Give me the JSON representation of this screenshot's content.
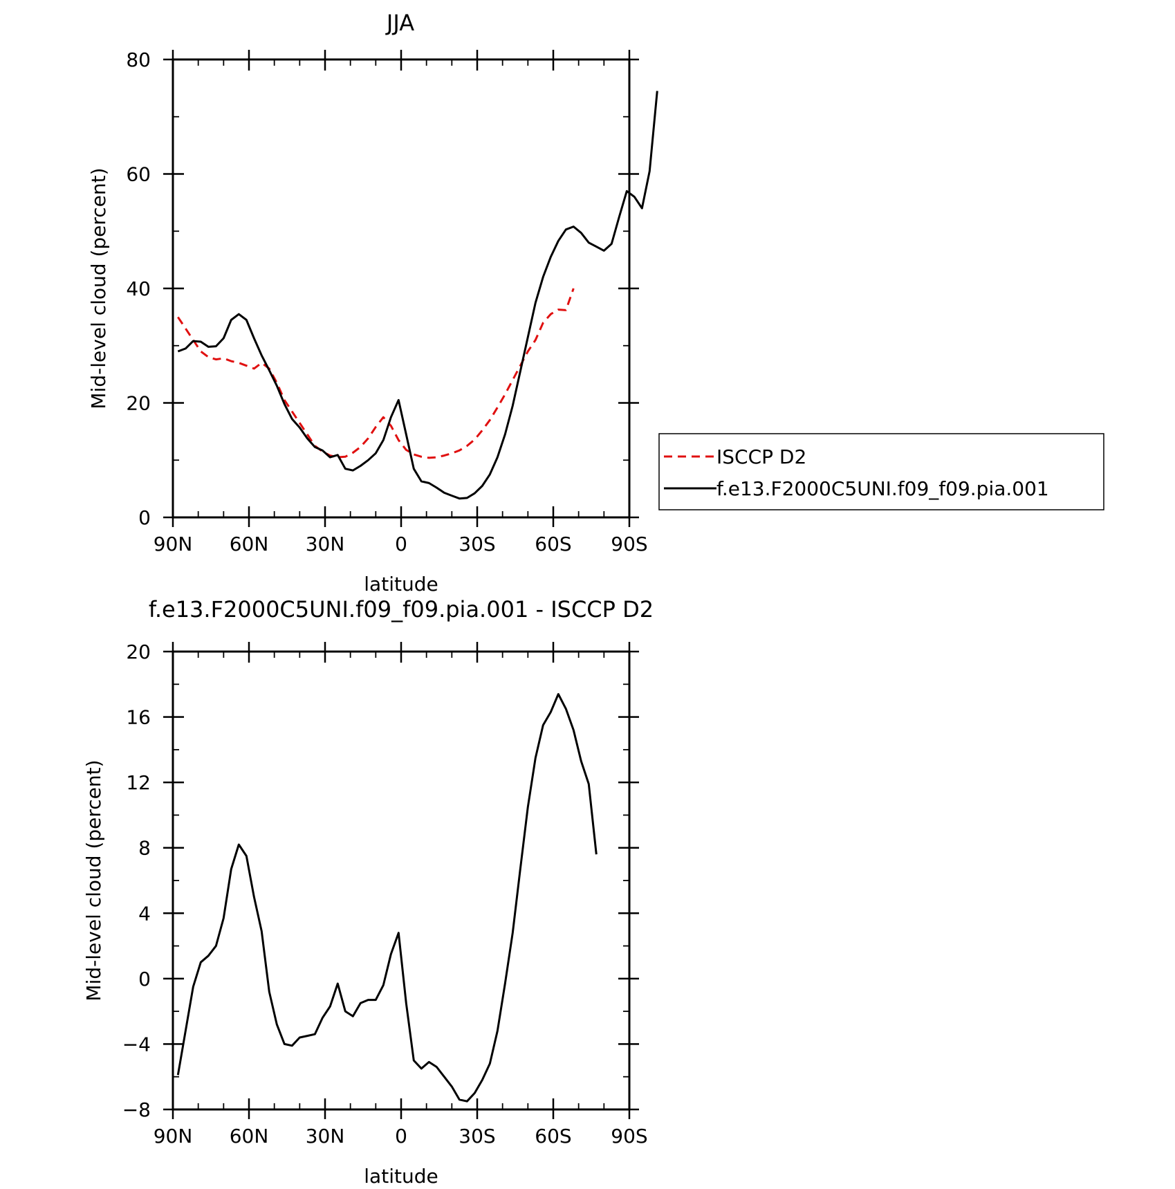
{
  "chart_data": [
    {
      "type": "line",
      "title": "JJA",
      "xlabel": "latitude",
      "ylabel": "Mid-level cloud (percent)",
      "xlim": [
        -90,
        90
      ],
      "ylim": [
        0,
        80
      ],
      "xticks": [
        {
          "value": -90,
          "label": "90N"
        },
        {
          "value": -60,
          "label": "60N"
        },
        {
          "value": -30,
          "label": "30N"
        },
        {
          "value": 0,
          "label": "0"
        },
        {
          "value": 30,
          "label": "30S"
        },
        {
          "value": 60,
          "label": "60S"
        },
        {
          "value": 90,
          "label": "90S"
        }
      ],
      "yticks": [
        {
          "value": 0,
          "label": "0"
        },
        {
          "value": 20,
          "label": "20"
        },
        {
          "value": 40,
          "label": "40"
        },
        {
          "value": 60,
          "label": "60"
        },
        {
          "value": 80,
          "label": "80"
        }
      ],
      "legend_position": "right",
      "series": [
        {
          "name": "ISCCP D2",
          "color": "#e01010",
          "dash": "dashed",
          "points": [
            [
              -88,
              35
            ],
            [
              -85,
              33
            ],
            [
              -82,
              31
            ],
            [
              -79,
              29
            ],
            [
              -76,
              28
            ],
            [
              -73,
              27.6
            ],
            [
              -70,
              27.8
            ],
            [
              -67,
              27.3
            ],
            [
              -64,
              27
            ],
            [
              -61,
              26.5
            ],
            [
              -58,
              26
            ],
            [
              -55,
              27
            ],
            [
              -52,
              26
            ],
            [
              -49,
              23.5
            ],
            [
              -46,
              20.5
            ],
            [
              -43,
              18.5
            ],
            [
              -40,
              16.5
            ],
            [
              -37,
              14.5
            ],
            [
              -34,
              12.5
            ],
            [
              -31,
              11.5
            ],
            [
              -28,
              10.8
            ],
            [
              -25,
              10.5
            ],
            [
              -22,
              10.6
            ],
            [
              -19,
              11.3
            ],
            [
              -16,
              12.3
            ],
            [
              -13,
              13.8
            ],
            [
              -10,
              15.8
            ],
            [
              -7,
              17.5
            ],
            [
              -4,
              16
            ],
            [
              -1,
              13.5
            ],
            [
              2,
              11.8
            ],
            [
              5,
              11
            ],
            [
              8,
              10.6
            ],
            [
              11,
              10.4
            ],
            [
              14,
              10.5
            ],
            [
              17,
              10.8
            ],
            [
              20,
              11.2
            ],
            [
              23,
              11.7
            ],
            [
              26,
              12.5
            ],
            [
              29,
              13.6
            ],
            [
              32,
              15.2
            ],
            [
              35,
              17
            ],
            [
              38,
              19.2
            ],
            [
              41,
              21.5
            ],
            [
              44,
              24
            ],
            [
              47,
              26.5
            ],
            [
              50,
              29
            ],
            [
              53,
              31
            ],
            [
              56,
              34
            ],
            [
              59,
              35.5
            ],
            [
              62,
              36.3
            ],
            [
              65,
              36.2
            ],
            [
              68,
              40
            ]
          ]
        },
        {
          "name": "f.e13.F2000C5UNI.f09_f09.pia.001",
          "color": "#000000",
          "dash": "solid",
          "points": [
            [
              -88,
              29
            ],
            [
              -85,
              29.5
            ],
            [
              -82,
              30.8
            ],
            [
              -79,
              30.7
            ],
            [
              -76,
              29.8
            ],
            [
              -73,
              29.9
            ],
            [
              -70,
              31.3
            ],
            [
              -67,
              34.5
            ],
            [
              -64,
              35.5
            ],
            [
              -61,
              34.5
            ],
            [
              -58,
              31.3
            ],
            [
              -55,
              28.3
            ],
            [
              -52,
              25.7
            ],
            [
              -49,
              23
            ],
            [
              -46,
              19.8
            ],
            [
              -43,
              17.2
            ],
            [
              -40,
              15.7
            ],
            [
              -37,
              13.8
            ],
            [
              -34,
              12.3
            ],
            [
              -31,
              11.7
            ],
            [
              -28,
              10.5
            ],
            [
              -25,
              10.9
            ],
            [
              -22,
              8.5
            ],
            [
              -19,
              8.2
            ],
            [
              -16,
              9
            ],
            [
              -13,
              10
            ],
            [
              -10,
              11.2
            ],
            [
              -7,
              13.5
            ],
            [
              -4,
              17.5
            ],
            [
              -1,
              20.5
            ],
            [
              2,
              14.5
            ],
            [
              5,
              8.5
            ],
            [
              8,
              6.3
            ],
            [
              11,
              6
            ],
            [
              14,
              5.2
            ],
            [
              17,
              4.3
            ],
            [
              20,
              3.8
            ],
            [
              23,
              3.3
            ],
            [
              26,
              3.4
            ],
            [
              29,
              4.2
            ],
            [
              32,
              5.5
            ],
            [
              35,
              7.5
            ],
            [
              38,
              10.5
            ],
            [
              41,
              14.5
            ],
            [
              44,
              19.5
            ],
            [
              47,
              25.5
            ],
            [
              50,
              31.5
            ],
            [
              53,
              37.5
            ],
            [
              56,
              42
            ],
            [
              59,
              45.5
            ],
            [
              62,
              48.3
            ],
            [
              65,
              50.3
            ],
            [
              68,
              50.8
            ],
            [
              71,
              49.7
            ],
            [
              74,
              48
            ],
            [
              77,
              47.3
            ],
            [
              80,
              46.6
            ],
            [
              83,
              47.8
            ],
            [
              86,
              52.5
            ],
            [
              89,
              57
            ],
            [
              92,
              56
            ],
            [
              95,
              54
            ],
            [
              98,
              60.5
            ],
            [
              101,
              74.5
            ]
          ]
        }
      ]
    },
    {
      "type": "line",
      "title": "f.e13.F2000C5UNI.f09_f09.pia.001 - ISCCP D2",
      "xlabel": "latitude",
      "ylabel": "Mid-level cloud (percent)",
      "xlim": [
        -90,
        90
      ],
      "ylim": [
        -8,
        20
      ],
      "xticks": [
        {
          "value": -90,
          "label": "90N"
        },
        {
          "value": -60,
          "label": "60N"
        },
        {
          "value": -30,
          "label": "30N"
        },
        {
          "value": 0,
          "label": "0"
        },
        {
          "value": 30,
          "label": "30S"
        },
        {
          "value": 60,
          "label": "60S"
        },
        {
          "value": 90,
          "label": "90S"
        }
      ],
      "yticks": [
        {
          "value": -8,
          "label": "−8"
        },
        {
          "value": -4,
          "label": "−4"
        },
        {
          "value": 0,
          "label": "0"
        },
        {
          "value": 4,
          "label": "4"
        },
        {
          "value": 8,
          "label": "8"
        },
        {
          "value": 12,
          "label": "12"
        },
        {
          "value": 16,
          "label": "16"
        },
        {
          "value": 20,
          "label": "20"
        }
      ],
      "series": [
        {
          "name": "",
          "color": "#000000",
          "dash": "solid",
          "points": [
            [
              -88,
              -5.9
            ],
            [
              -85,
              -3.2
            ],
            [
              -82,
              -0.5
            ],
            [
              -79,
              1
            ],
            [
              -76,
              1.4
            ],
            [
              -73,
              2
            ],
            [
              -70,
              3.7
            ],
            [
              -67,
              6.7
            ],
            [
              -64,
              8.2
            ],
            [
              -61,
              7.5
            ],
            [
              -58,
              5
            ],
            [
              -55,
              2.9
            ],
            [
              -52,
              -0.8
            ],
            [
              -49,
              -2.8
            ],
            [
              -46,
              -4
            ],
            [
              -43,
              -4.1
            ],
            [
              -40,
              -3.6
            ],
            [
              -37,
              -3.5
            ],
            [
              -34,
              -3.4
            ],
            [
              -31,
              -2.4
            ],
            [
              -28,
              -1.7
            ],
            [
              -25,
              -0.3
            ],
            [
              -22,
              -2
            ],
            [
              -19,
              -2.3
            ],
            [
              -16,
              -1.5
            ],
            [
              -13,
              -1.3
            ],
            [
              -10,
              -1.3
            ],
            [
              -7,
              -0.4
            ],
            [
              -4,
              1.5
            ],
            [
              -1,
              2.8
            ],
            [
              2,
              -1.5
            ],
            [
              5,
              -5
            ],
            [
              8,
              -5.5
            ],
            [
              11,
              -5.1
            ],
            [
              14,
              -5.4
            ],
            [
              17,
              -6
            ],
            [
              20,
              -6.6
            ],
            [
              23,
              -7.4
            ],
            [
              26,
              -7.5
            ],
            [
              29,
              -7
            ],
            [
              32,
              -6.2
            ],
            [
              35,
              -5.2
            ],
            [
              38,
              -3.2
            ],
            [
              41,
              -0.3
            ],
            [
              44,
              2.8
            ],
            [
              47,
              6.7
            ],
            [
              50,
              10.5
            ],
            [
              53,
              13.5
            ],
            [
              56,
              15.5
            ],
            [
              59,
              16.3
            ],
            [
              62,
              17.4
            ],
            [
              65,
              16.5
            ],
            [
              68,
              15.2
            ],
            [
              71,
              13.3
            ],
            [
              74,
              11.9
            ],
            [
              77,
              7.6
            ]
          ]
        }
      ]
    }
  ]
}
